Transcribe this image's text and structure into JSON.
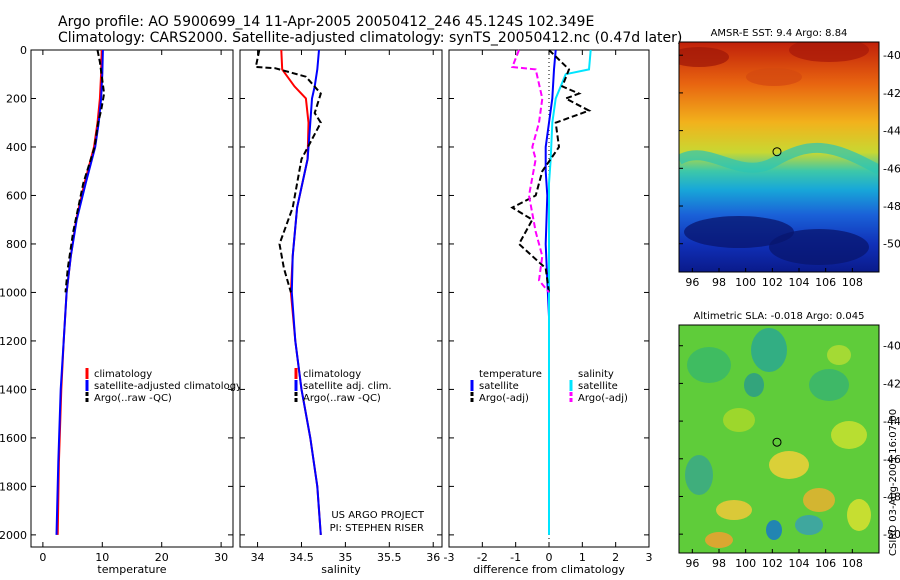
{
  "header": {
    "line1": "Argo profile: AO 5900699_14 11-Apr-2005 20050412_246 45.124S 102.349E",
    "line2": "Climatology: CARS2000. Satellite-adjusted climatology: synTS_20050412.nc (0.47d later)"
  },
  "footer_stamp": "CSIRO 03-Aug-2005 16:07:00",
  "colors": {
    "climatology": "#ff0000",
    "satellite": "#0000ff",
    "argo": "#000000",
    "sal_sat": "#00e5ff",
    "sal_argo": "#ff00ff"
  },
  "chart_data": [
    {
      "type": "line",
      "title": "",
      "xlabel": "temperature",
      "ylabel": "",
      "xlim": [
        -2,
        32
      ],
      "ylim": [
        2050,
        0
      ],
      "xticks": [
        "0",
        "10",
        "20",
        "30"
      ],
      "yticks": [
        "0",
        "200",
        "400",
        "600",
        "800",
        "1000",
        "1200",
        "1400",
        "1600",
        "1800",
        "2000"
      ],
      "legend": [
        "climatology",
        "satellite-adjusted climatology",
        "Argo(..raw -QC)"
      ],
      "series": [
        {
          "name": "climatology",
          "color": "red",
          "dash": "",
          "x": [
            9.9,
            9.8,
            9.6,
            9.2,
            8.6,
            7.0,
            5.6,
            4.7,
            4.0,
            3.5,
            3.1,
            2.7,
            2.5
          ],
          "y": [
            0,
            100,
            200,
            300,
            400,
            550,
            700,
            850,
            1000,
            1200,
            1400,
            1700,
            2000
          ]
        },
        {
          "name": "satellite-adjusted climatology",
          "color": "blue",
          "dash": "",
          "x": [
            10.1,
            10.0,
            9.8,
            9.4,
            8.8,
            7.2,
            5.7,
            4.7,
            4.0,
            3.5,
            3.0,
            2.6,
            2.3
          ],
          "y": [
            0,
            100,
            200,
            300,
            400,
            550,
            700,
            850,
            1000,
            1200,
            1400,
            1700,
            2000
          ]
        },
        {
          "name": "Argo(..raw -QC)",
          "color": "black",
          "dash": "6,3",
          "x": [
            9.2,
            9.6,
            10.3,
            9.8,
            9.3,
            8.7,
            6.8,
            5.1,
            4.2,
            3.8
          ],
          "y": [
            0,
            50,
            180,
            250,
            300,
            400,
            550,
            750,
            900,
            1000
          ]
        }
      ]
    },
    {
      "type": "line",
      "title": "",
      "xlabel": "salinity",
      "ylabel": "",
      "xlim": [
        33.8,
        36.1
      ],
      "ylim": [
        2050,
        0
      ],
      "xticks": [
        "34",
        "34.5",
        "35",
        "35.5",
        "36"
      ],
      "yticks": [],
      "legend": [
        "climatology",
        "satellite adj. clim.",
        "Argo(..raw -QC)"
      ],
      "annotation": [
        "US ARGO PROJECT",
        "PI: STEPHEN RISER"
      ],
      "series": [
        {
          "name": "climatology",
          "color": "red",
          "dash": "",
          "x": [
            34.27,
            34.28,
            34.42,
            34.55,
            34.58,
            34.57,
            34.45,
            34.4,
            34.38,
            34.43,
            34.5,
            34.6,
            34.68,
            34.72
          ],
          "y": [
            0,
            80,
            150,
            200,
            300,
            450,
            650,
            850,
            1000,
            1200,
            1400,
            1600,
            1800,
            2000
          ]
        },
        {
          "name": "satellite adj. clim.",
          "color": "blue",
          "dash": "",
          "x": [
            34.7,
            34.68,
            34.65,
            34.62,
            34.6,
            34.57,
            34.45,
            34.4,
            34.39,
            34.43,
            34.5,
            34.6,
            34.68,
            34.72
          ],
          "y": [
            0,
            80,
            150,
            200,
            300,
            450,
            650,
            850,
            1000,
            1200,
            1400,
            1600,
            1800,
            2000
          ]
        },
        {
          "name": "Argo(..raw -QC)",
          "color": "black",
          "dash": "6,3",
          "x": [
            34.02,
            33.98,
            34.2,
            34.55,
            34.72,
            34.65,
            34.72,
            34.5,
            34.4,
            34.25,
            34.3,
            34.38
          ],
          "y": [
            0,
            70,
            75,
            110,
            180,
            260,
            300,
            450,
            650,
            800,
            900,
            1000
          ]
        }
      ]
    },
    {
      "type": "line",
      "title": "",
      "xlabel": "difference from climatology",
      "ylabel": "",
      "xlim": [
        -3,
        3
      ],
      "ylim": [
        2050,
        0
      ],
      "xticks": [
        "-3",
        "-2",
        "-1",
        "0",
        "1",
        "2",
        "3"
      ],
      "yticks": [],
      "legend": [
        "temperature",
        "satellite",
        "Argo(-adj)",
        "salinity",
        "satellite",
        "Argo(-adj)"
      ],
      "series": [
        {
          "name": "temperature satellite",
          "color": "blue",
          "dash": "",
          "x": [
            0.2,
            0.15,
            0.1,
            0.0,
            -0.1,
            -0.1,
            -0.05,
            -0.1,
            -0.05,
            0.0,
            0.0,
            0.0,
            0.0
          ],
          "y": [
            0,
            80,
            200,
            300,
            400,
            500,
            600,
            800,
            950,
            1100,
            1400,
            1700,
            1950
          ]
        },
        {
          "name": "salinity satellite",
          "color": "cyan",
          "dash": "",
          "x": [
            1.25,
            1.2,
            0.5,
            0.2,
            0.1,
            0.05,
            0.0,
            0.0,
            0.0,
            0.0,
            0.0
          ],
          "y": [
            0,
            80,
            100,
            200,
            300,
            450,
            550,
            700,
            1000,
            1500,
            2000
          ]
        },
        {
          "name": "temperature Argo(-adj)",
          "color": "black",
          "dash": "6,3",
          "x": [
            0.0,
            0.6,
            0.4,
            0.9,
            0.5,
            1.2,
            0.2,
            0.3,
            -0.2,
            -0.4,
            -1.1,
            -0.5,
            -0.9,
            -0.5,
            -0.1,
            0.0
          ],
          "y": [
            0,
            80,
            150,
            180,
            200,
            250,
            300,
            400,
            500,
            600,
            650,
            700,
            800,
            850,
            900,
            1000
          ]
        },
        {
          "name": "salinity Argo(-adj)",
          "color": "magenta",
          "dash": "6,3",
          "x": [
            -0.9,
            -1.1,
            -0.4,
            -0.2,
            -0.3,
            -0.5,
            -0.4,
            -0.6,
            -0.4,
            -0.2,
            -0.3,
            0.0
          ],
          "y": [
            0,
            70,
            80,
            200,
            300,
            400,
            450,
            600,
            750,
            850,
            950,
            1000
          ]
        }
      ]
    },
    {
      "type": "heatmap",
      "title": "AMSR-E SST: 9.4 Argo: 8.84",
      "xlim": [
        95,
        110
      ],
      "ylim": [
        -51.5,
        -39.3
      ],
      "xticks": [
        "96",
        "98",
        "100",
        "102",
        "104",
        "106",
        "108"
      ],
      "yticks": [
        "-40",
        "-42",
        "-44",
        "-46",
        "-48",
        "-50"
      ],
      "marker": {
        "lon": 102.35,
        "lat": -45.12
      }
    },
    {
      "type": "heatmap",
      "title": "Altimetric SLA: -0.018 Argo: 0.045",
      "xlim": [
        95,
        110
      ],
      "ylim": [
        -51.0,
        -38.9
      ],
      "xticks": [
        "96",
        "98",
        "100",
        "102",
        "104",
        "106",
        "108"
      ],
      "yticks": [
        "-40",
        "-42",
        "-44",
        "-46",
        "-48",
        "-50"
      ],
      "marker": {
        "lon": 102.35,
        "lat": -45.12
      }
    }
  ]
}
